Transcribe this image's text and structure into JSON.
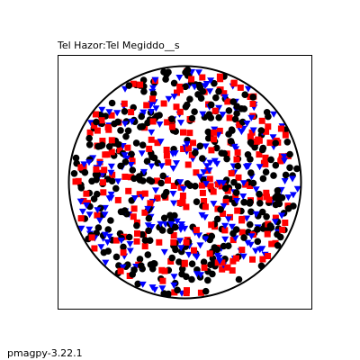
{
  "title": "Tel Hazor:Tel Megiddo__s",
  "footer": "pmagpy-3.22.1",
  "chart_data": {
    "type": "scatter",
    "projection": "equal-area stereonet (circle boundary)",
    "title": "Tel Hazor:Tel Megiddo__s",
    "grid": false,
    "series": [
      {
        "marker": "circle",
        "color": "#000000",
        "seed": 11,
        "count": 360
      },
      {
        "marker": "square",
        "color": "#ff0000",
        "seed": 29,
        "count": 230
      },
      {
        "marker": "triangle-down",
        "color": "#0000ff",
        "seed": 47,
        "count": 240
      }
    ]
  }
}
